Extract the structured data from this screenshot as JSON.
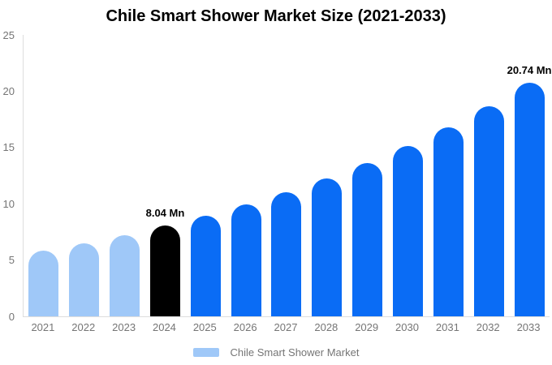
{
  "chart_data": {
    "type": "bar",
    "title": "Chile Smart Shower Market Size (2021-2033)",
    "categories": [
      "2021",
      "2022",
      "2023",
      "2024",
      "2025",
      "2026",
      "2027",
      "2028",
      "2029",
      "2030",
      "2031",
      "2032",
      "2033"
    ],
    "values": [
      5.86,
      6.51,
      7.24,
      8.04,
      8.93,
      9.92,
      11.03,
      12.25,
      13.61,
      15.12,
      16.8,
      18.67,
      20.74
    ],
    "unit": "Mn",
    "bar_colors": [
      "#9fc8f8",
      "#9fc8f8",
      "#9fc8f8",
      "#000000",
      "#0a6cf5",
      "#0a6cf5",
      "#0a6cf5",
      "#0a6cf5",
      "#0a6cf5",
      "#0a6cf5",
      "#0a6cf5",
      "#0a6cf5",
      "#0a6cf5"
    ],
    "data_labels": [
      "",
      "",
      "",
      "8.04 Mn",
      "",
      "",
      "",
      "",
      "",
      "",
      "",
      "",
      "20.74 Mn"
    ],
    "xlabel": "",
    "ylabel": "",
    "ylim": [
      0,
      25
    ],
    "yticks": [
      0,
      5,
      10,
      15,
      20,
      25
    ],
    "grid": false,
    "legend_position": "bottom",
    "legend": [
      {
        "label": "Chile Smart Shower Market",
        "color": "#9fc8f8"
      }
    ]
  },
  "colors": {
    "light_blue": "#9fc8f8",
    "blue": "#0a6cf5",
    "highlight_black": "#000000",
    "axis_line": "#dddddd",
    "label_gray": "#757575"
  }
}
